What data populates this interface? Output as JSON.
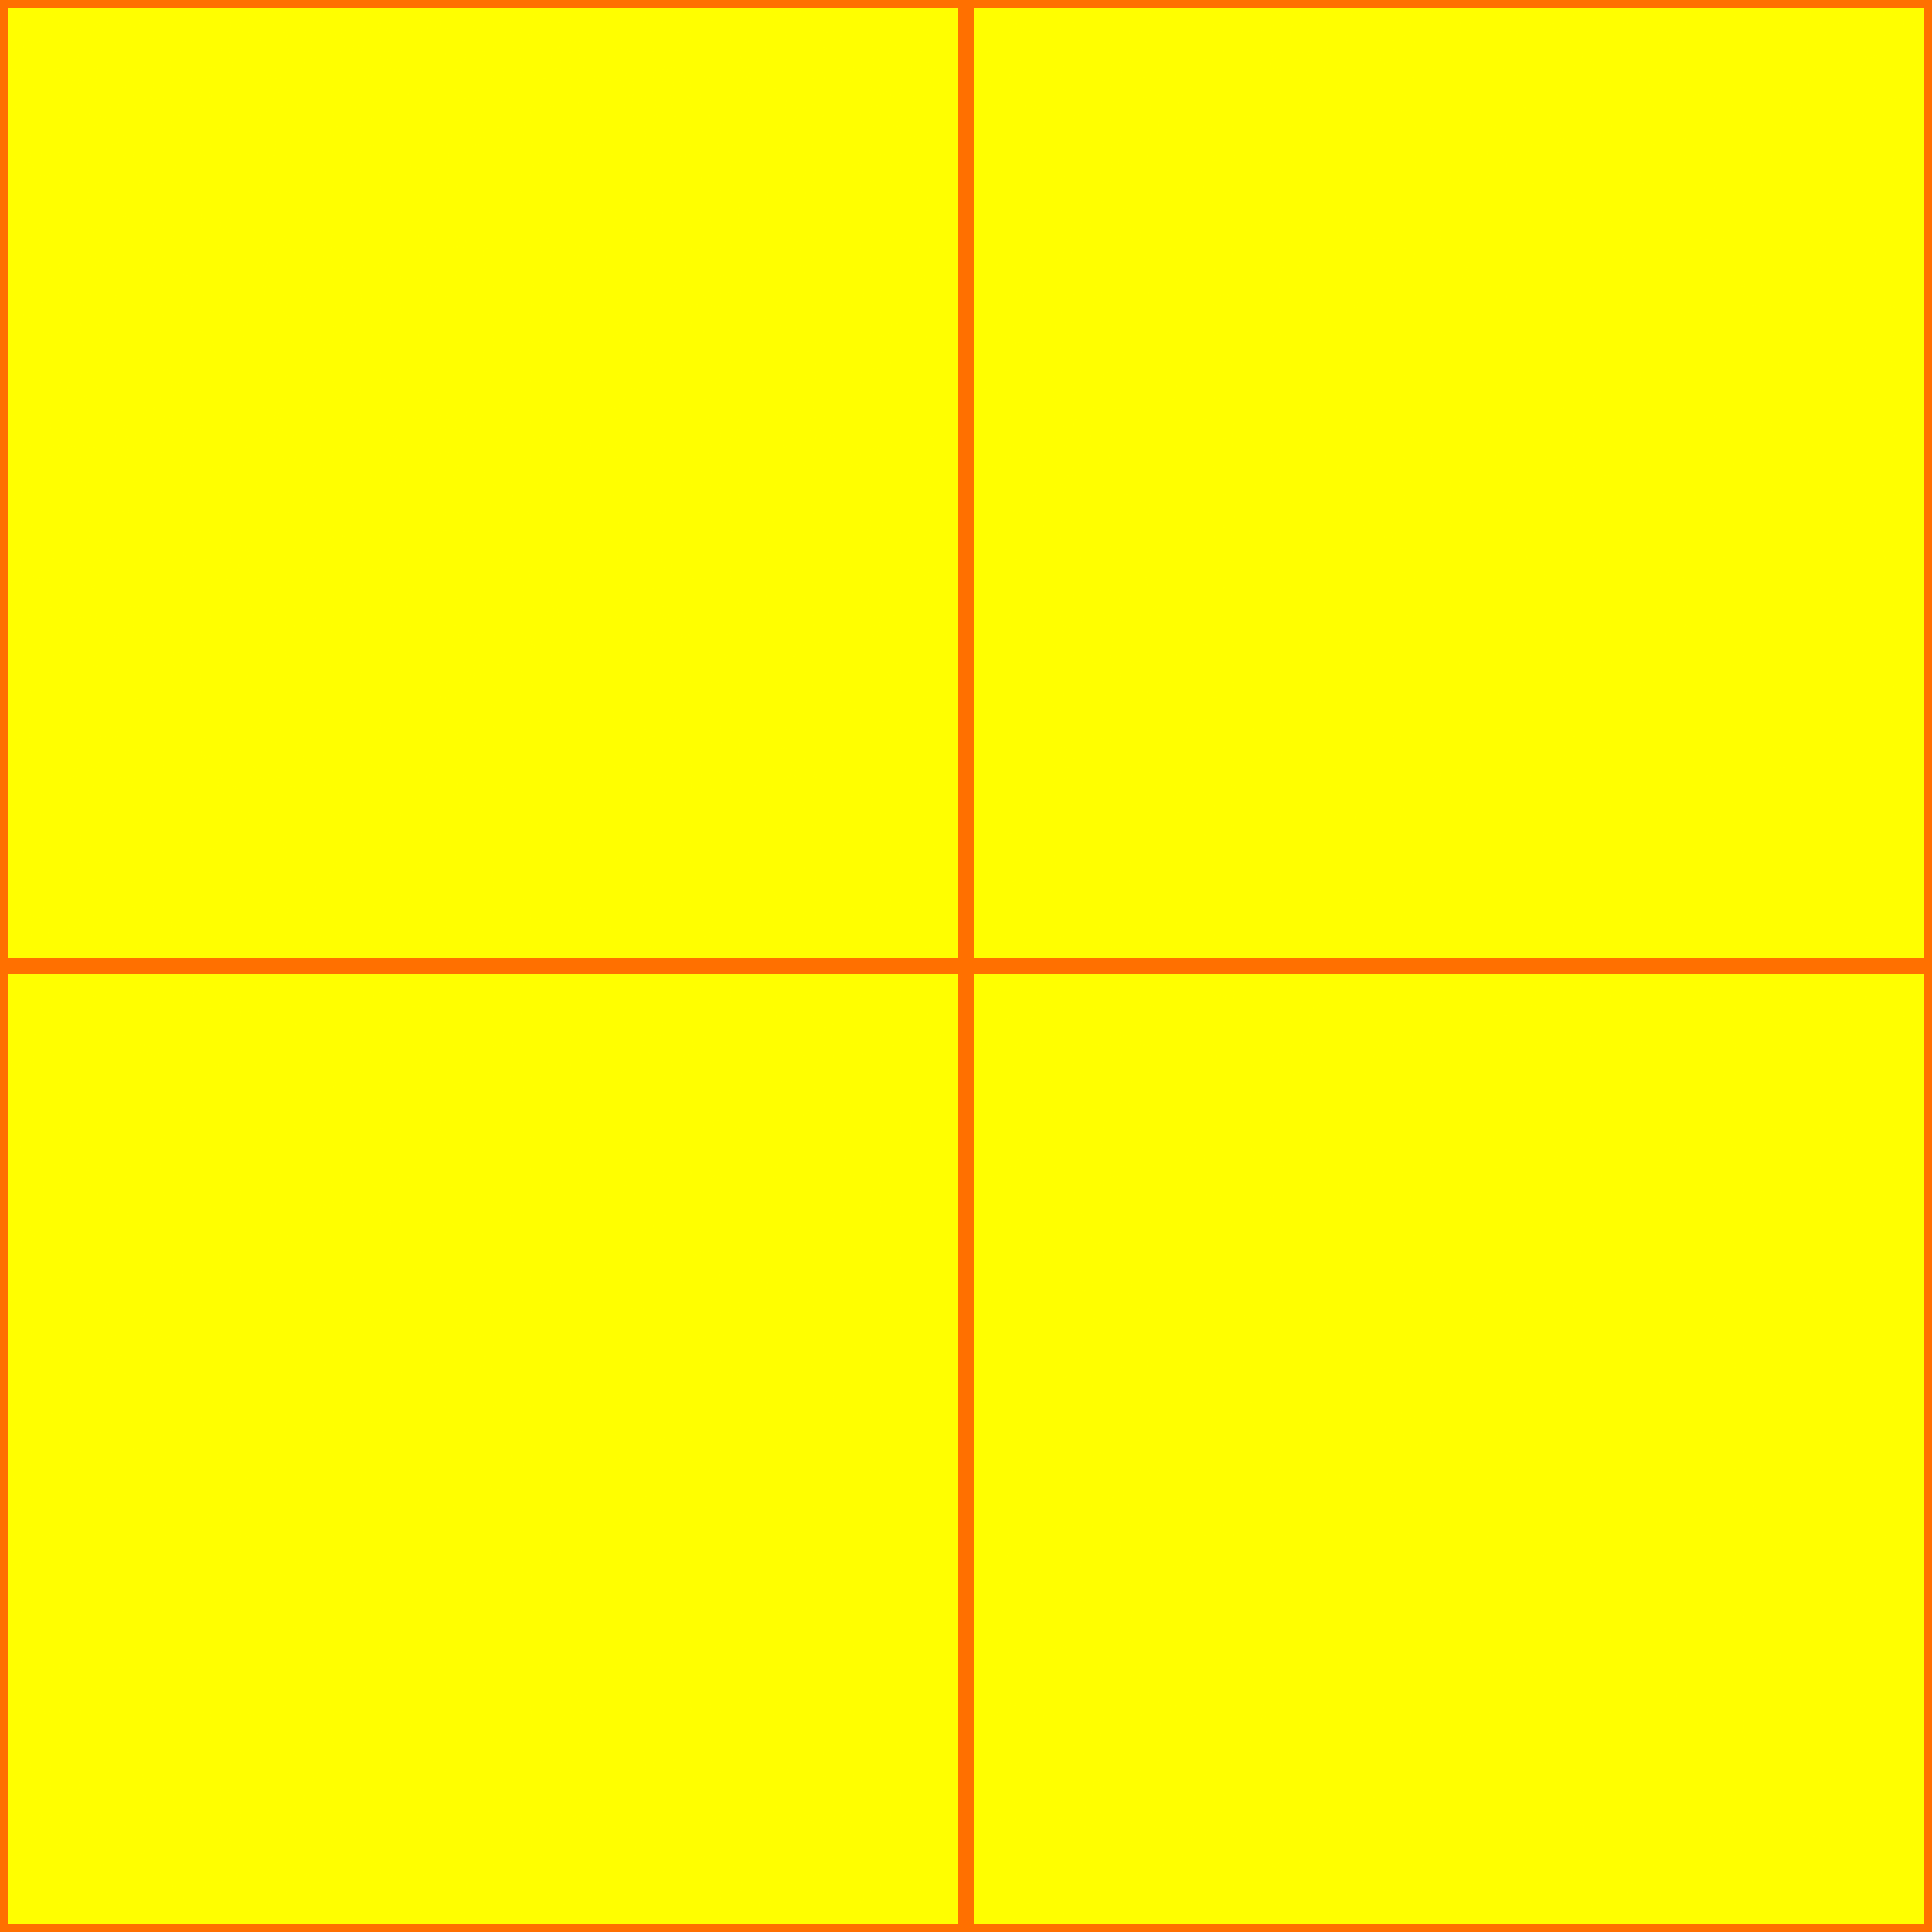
{
  "colors": {
    "panel_fill": "#ffff00",
    "divider": "#ff7000"
  },
  "panels": [
    {
      "id": "top-left"
    },
    {
      "id": "top-right"
    },
    {
      "id": "bottom-left"
    },
    {
      "id": "bottom-right"
    }
  ]
}
